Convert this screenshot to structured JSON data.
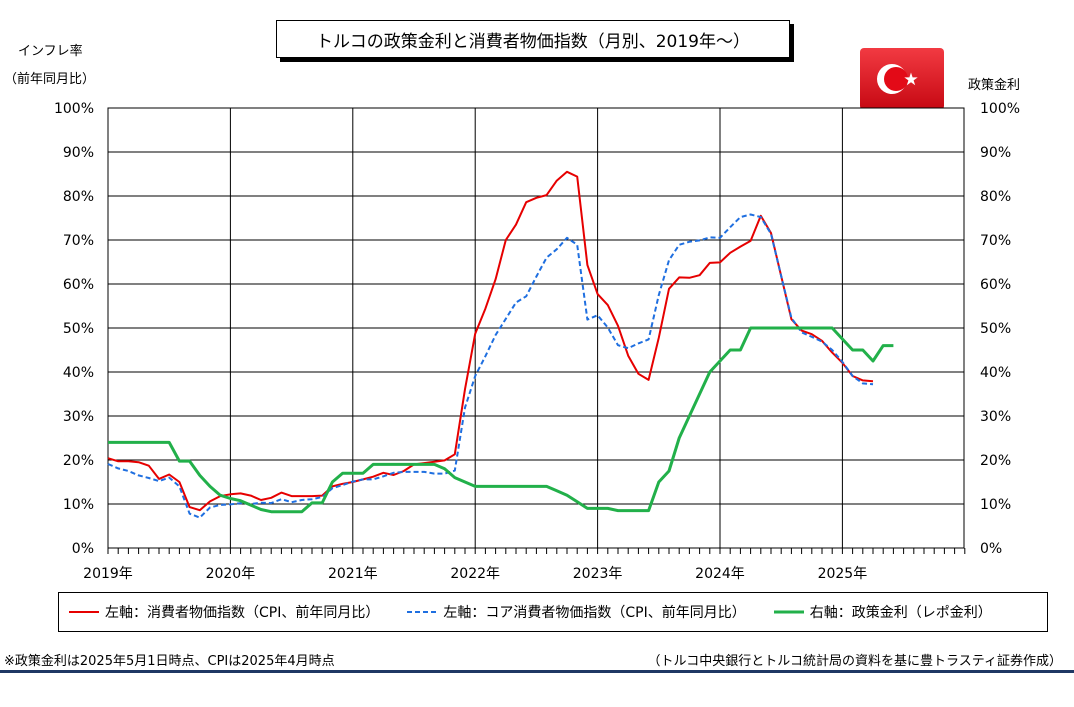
{
  "chart_data": {
    "type": "line",
    "title": "トルコの政策金利と消費者物価指数（月別、2019年～）",
    "left_axis_label_line1": "インフレ率",
    "left_axis_label_line2": "（前年同月比）",
    "right_axis_label": "政策金利",
    "y_ticks": [
      "0%",
      "10%",
      "20%",
      "30%",
      "40%",
      "50%",
      "60%",
      "70%",
      "80%",
      "90%",
      "100%"
    ],
    "ylim": [
      0,
      100
    ],
    "x_tick_labels": [
      "2019年",
      "2020年",
      "2021年",
      "2022年",
      "2023年",
      "2024年",
      "2025年"
    ],
    "x_start": "2019-01",
    "grid": true,
    "legend_position": "bottom",
    "series": [
      {
        "name": "左軸：消費者物価指数（CPI、前年同月比）",
        "axis": "left",
        "color": "#e60000",
        "dash": false,
        "values": [
          20.4,
          19.7,
          19.7,
          19.5,
          18.7,
          15.7,
          16.7,
          15.0,
          9.3,
          8.6,
          10.6,
          11.8,
          12.2,
          12.4,
          11.9,
          10.9,
          11.4,
          12.6,
          11.8,
          11.8,
          11.8,
          11.9,
          14.0,
          14.6,
          15.0,
          15.6,
          16.2,
          17.1,
          16.6,
          17.5,
          19.0,
          19.3,
          19.6,
          19.9,
          21.3,
          36.1,
          48.7,
          54.4,
          61.1,
          70.0,
          73.5,
          78.6,
          79.6,
          80.2,
          83.5,
          85.5,
          84.4,
          64.3,
          57.7,
          55.2,
          50.5,
          43.7,
          39.6,
          38.2,
          47.8,
          58.9,
          61.5,
          61.4,
          62.0,
          64.8,
          64.9,
          67.1,
          68.5,
          69.8,
          75.5,
          71.6,
          61.8,
          52.0,
          49.4,
          48.6,
          47.1,
          44.4,
          42.1,
          39.1,
          38.1,
          37.9
        ]
      },
      {
        "name": "左軸：コア消費者物価指数（CPI、前年同月比）",
        "axis": "left",
        "color": "#1f6fe0",
        "dash": true,
        "values": [
          19.1,
          18.1,
          17.5,
          16.5,
          15.9,
          15.2,
          16.0,
          14.0,
          7.8,
          6.9,
          9.2,
          9.8,
          9.9,
          10.2,
          10.0,
          10.3,
          10.2,
          11.1,
          10.4,
          10.9,
          11.1,
          11.6,
          13.6,
          14.3,
          15.1,
          15.6,
          15.6,
          16.3,
          17.1,
          17.3,
          17.3,
          17.3,
          16.9,
          16.9,
          17.6,
          31.9,
          39.1,
          43.6,
          48.4,
          52.1,
          55.8,
          57.2,
          61.7,
          66.0,
          67.9,
          70.5,
          68.9,
          51.9,
          52.9,
          50.1,
          46.1,
          45.4,
          46.5,
          47.4,
          57.5,
          65.4,
          68.9,
          69.6,
          69.9,
          70.6,
          70.5,
          72.9,
          75.2,
          75.8,
          75.2,
          71.4,
          61.8,
          52.3,
          49.0,
          48.0,
          46.9,
          45.0,
          42.3,
          39.1,
          37.4,
          37.2
        ]
      },
      {
        "name": "右軸：政策金利（レポ金利）",
        "axis": "right",
        "color": "#22b04a",
        "dash": false,
        "values": [
          24.0,
          24.0,
          24.0,
          24.0,
          24.0,
          24.0,
          24.0,
          19.75,
          19.75,
          16.5,
          14.0,
          12.0,
          11.25,
          10.75,
          9.75,
          8.75,
          8.25,
          8.25,
          8.25,
          8.25,
          10.25,
          10.25,
          15.0,
          17.0,
          17.0,
          17.0,
          19.0,
          19.0,
          19.0,
          19.0,
          19.0,
          19.0,
          19.0,
          18.0,
          16.0,
          15.0,
          14.0,
          14.0,
          14.0,
          14.0,
          14.0,
          14.0,
          14.0,
          14.0,
          13.0,
          12.0,
          10.5,
          9.0,
          9.0,
          9.0,
          8.5,
          8.5,
          8.5,
          8.5,
          15.0,
          17.5,
          25.0,
          30.0,
          35.0,
          40.0,
          42.5,
          45.0,
          45.0,
          50.0,
          50.0,
          50.0,
          50.0,
          50.0,
          50.0,
          50.0,
          50.0,
          50.0,
          47.5,
          45.0,
          45.0,
          42.5,
          46.0,
          46.0
        ]
      }
    ]
  },
  "notes": {
    "left": "※政策金利は2025年5月1日時点、CPIは2025年4月時点",
    "right": "（トルコ中央銀行とトルコ統計局の資料を基に豊トラスティ証券作成）"
  },
  "flag": {
    "country": "トルコ",
    "icon": "turkey-flag-icon",
    "color": "#e30a17"
  }
}
